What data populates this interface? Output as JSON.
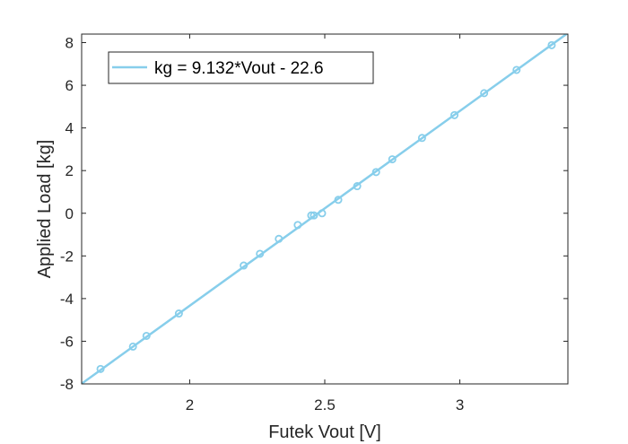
{
  "chart_data": {
    "type": "scatter",
    "title": "",
    "xlabel": "Futek Vout [V]",
    "ylabel": "Applied Load [kg]",
    "xlim": [
      1.6,
      3.4
    ],
    "ylim": [
      -8,
      8.4
    ],
    "xticks": [
      2,
      2.5,
      3
    ],
    "yticks": [
      -8,
      -6,
      -4,
      -2,
      0,
      2,
      4,
      6,
      8
    ],
    "grid": false,
    "legend_position": "top-left",
    "color": "#87CEEB",
    "fit": {
      "label": "kg = 9.132*Vout - 22.6",
      "slope": 9.132,
      "intercept": -22.6
    },
    "points": [
      {
        "x": 1.67,
        "y": -7.3
      },
      {
        "x": 1.79,
        "y": -6.25
      },
      {
        "x": 1.84,
        "y": -5.75
      },
      {
        "x": 1.96,
        "y": -4.7
      },
      {
        "x": 2.2,
        "y": -2.45
      },
      {
        "x": 2.26,
        "y": -1.9
      },
      {
        "x": 2.33,
        "y": -1.2
      },
      {
        "x": 2.4,
        "y": -0.55
      },
      {
        "x": 2.45,
        "y": -0.1
      },
      {
        "x": 2.46,
        "y": -0.1
      },
      {
        "x": 2.49,
        "y": 0.0
      },
      {
        "x": 2.55,
        "y": 0.63
      },
      {
        "x": 2.62,
        "y": 1.27
      },
      {
        "x": 2.69,
        "y": 1.93
      },
      {
        "x": 2.75,
        "y": 2.53
      },
      {
        "x": 2.86,
        "y": 3.53
      },
      {
        "x": 2.98,
        "y": 4.6
      },
      {
        "x": 3.09,
        "y": 5.63
      },
      {
        "x": 3.21,
        "y": 6.72
      },
      {
        "x": 3.34,
        "y": 7.88
      }
    ]
  }
}
